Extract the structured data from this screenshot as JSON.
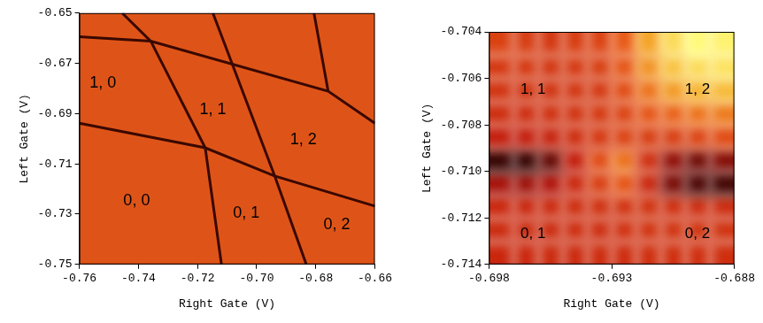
{
  "chart_data": [
    {
      "type": "line",
      "xlabel": "Right Gate (V)",
      "ylabel": "Left Gate (V)",
      "xlim": [
        -0.76,
        -0.66
      ],
      "xticks": [
        -0.76,
        -0.74,
        -0.72,
        {
          "value": -0.7,
          "label": "-0.70"
        },
        -0.68,
        -0.66
      ],
      "ylim": [
        -0.75,
        -0.65
      ],
      "yticks": [
        -0.75,
        -0.73,
        -0.71,
        -0.69,
        -0.67,
        -0.65
      ],
      "series": [
        {
          "color": "#3a0800",
          "x": [
            -0.7455,
            -0.7358,
            -0.7174,
            -0.7119
          ],
          "values": [
            -0.65,
            -0.6612,
            -0.7036,
            -0.75
          ]
        },
        {
          "color": "#3a0800",
          "x": [
            -0.7148,
            -0.6939,
            -0.6832
          ],
          "values": [
            -0.65,
            -0.7148,
            -0.75
          ]
        },
        {
          "color": "#3a0800",
          "x": [
            -0.6806,
            -0.6758
          ],
          "values": [
            -0.65,
            -0.6811
          ]
        },
        {
          "color": "#3a0800",
          "x": [
            -0.76,
            -0.7358,
            -0.6758,
            -0.66
          ],
          "values": [
            -0.6594,
            -0.6612,
            -0.6811,
            -0.6938
          ]
        },
        {
          "color": "#3a0800",
          "x": [
            -0.76,
            -0.7174,
            -0.6939,
            -0.66
          ],
          "values": [
            -0.6938,
            -0.7036,
            -0.7148,
            -0.7268
          ]
        }
      ],
      "annotations": [
        {
          "text": "1, 0",
          "x": -0.752,
          "y": -0.678
        },
        {
          "text": "1, 1",
          "x": -0.7148,
          "y": -0.6886
        },
        {
          "text": "1, 2",
          "x": -0.6842,
          "y": -0.7006
        },
        {
          "text": "0, 0",
          "x": -0.7406,
          "y": -0.7249
        },
        {
          "text": "0, 1",
          "x": -0.7035,
          "y": -0.7298
        },
        {
          "text": "0, 2",
          "x": -0.6729,
          "y": -0.7343
        }
      ]
    },
    {
      "type": "heatmap",
      "xlabel": "Right Gate (V)",
      "ylabel": "Left Gate (V)",
      "xlim": [
        -0.698,
        -0.688
      ],
      "xticks": [
        -0.698,
        -0.693,
        -0.688
      ],
      "ylim": [
        -0.714,
        -0.704
      ],
      "yticks": [
        -0.714,
        -0.712,
        {
          "value": -0.71,
          "label": "-0.710"
        },
        -0.708,
        -0.706,
        -0.704
      ],
      "x": [
        -0.6975,
        -0.6965,
        -0.6955,
        -0.6945,
        -0.6935,
        -0.6925,
        -0.6915,
        -0.6905,
        -0.6895,
        -0.6885
      ],
      "y": [
        -0.7135,
        -0.7125,
        -0.7115,
        -0.7105,
        -0.7095,
        -0.7085,
        -0.7075,
        -0.7065,
        -0.7055,
        -0.7045
      ],
      "zlim": [
        0,
        1
      ],
      "cells": [
        [
          0.42,
          0.42,
          0.43,
          0.43,
          0.44,
          0.44,
          0.45,
          0.45,
          0.45,
          0.45
        ],
        [
          0.43,
          0.43,
          0.43,
          0.44,
          0.44,
          0.45,
          0.46,
          0.46,
          0.46,
          0.46
        ],
        [
          0.42,
          0.42,
          0.43,
          0.44,
          0.45,
          0.46,
          0.46,
          0.45,
          0.44,
          0.44
        ],
        [
          0.3,
          0.28,
          0.32,
          0.42,
          0.5,
          0.58,
          0.42,
          0.2,
          0.1,
          0.08
        ],
        [
          0.05,
          0.05,
          0.15,
          0.38,
          0.55,
          0.66,
          0.45,
          0.25,
          0.18,
          0.22
        ],
        [
          0.38,
          0.38,
          0.4,
          0.44,
          0.48,
          0.52,
          0.5,
          0.5,
          0.52,
          0.55
        ],
        [
          0.44,
          0.44,
          0.45,
          0.46,
          0.48,
          0.52,
          0.58,
          0.62,
          0.66,
          0.68
        ],
        [
          0.46,
          0.46,
          0.46,
          0.47,
          0.48,
          0.55,
          0.66,
          0.76,
          0.82,
          0.84
        ],
        [
          0.48,
          0.48,
          0.47,
          0.48,
          0.5,
          0.58,
          0.74,
          0.86,
          0.92,
          0.94
        ],
        [
          0.52,
          0.5,
          0.48,
          0.5,
          0.52,
          0.6,
          0.78,
          0.92,
          1.0,
          0.98
        ]
      ],
      "annotations": [
        {
          "text": "1, 1",
          "x": -0.6962,
          "y": -0.7065
        },
        {
          "text": "1, 2",
          "x": -0.6895,
          "y": -0.7065
        },
        {
          "text": "0, 1",
          "x": -0.6962,
          "y": -0.7127
        },
        {
          "text": "0, 2",
          "x": -0.6895,
          "y": -0.7127
        }
      ]
    }
  ]
}
